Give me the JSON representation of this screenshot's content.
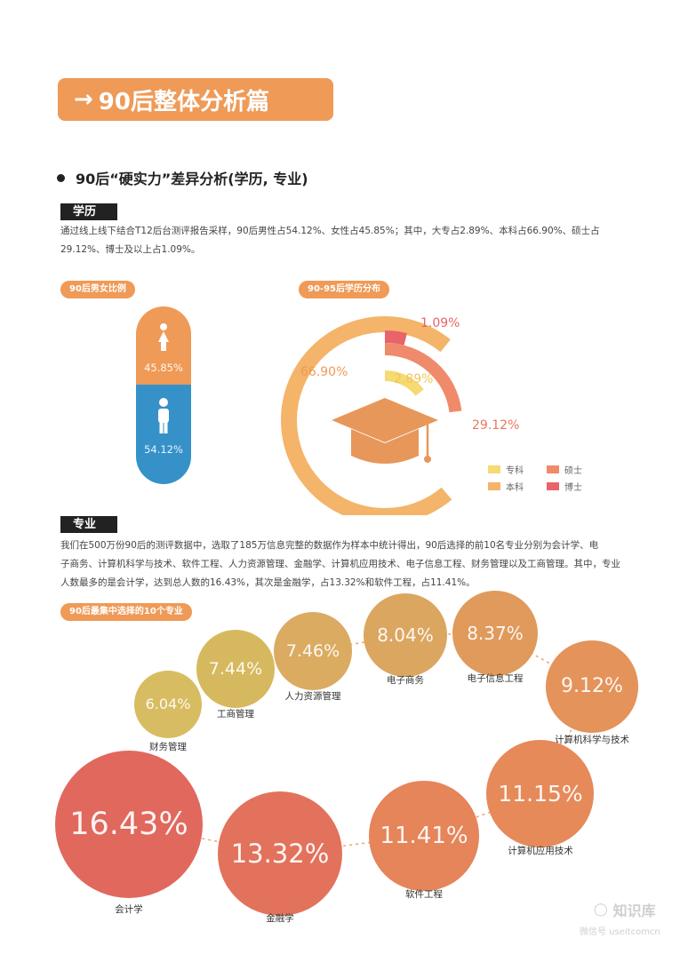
{
  "header": {
    "title": "90后整体分析篇",
    "arrow": "→"
  },
  "section": {
    "title": "90后“硬实力”差异分析(学历, 专业)"
  },
  "education": {
    "tag": "学历",
    "text_line1": "通过线上线下结合T12后台测评报告采样，90后男性占54.12%、女性占45.85%；其中，大专占2.89%、本科占66.90%、硕士占",
    "text_line2": "29.12%、博士及以上占1.09%。"
  },
  "gender_chart": {
    "pill": "90后男女比例",
    "female_label": "45.85%",
    "male_label": "54.12%",
    "colors": {
      "female": "#ef9a57",
      "male": "#3691c9"
    }
  },
  "degree_chart": {
    "pill": "90-95后学历分布"
  },
  "major": {
    "tag": "专业",
    "text_line1": "我们在500万份90后的测评数据中，选取了185万信息完整的数据作为样本中统计得出，90后选择的前10名专业分别为会计学、电",
    "text_line2": "子商务、计算机科学与技术、软件工程、人力资源管理、金融学、计算机应用技术、电子信息工程、财务管理以及工商管理。其中，专业",
    "text_line3": "人数最多的是会计学，达到总人数的16.43%，其次是金融学，占13.32%和软件工程，占11.41%。"
  },
  "major_chart": {
    "pill": "90后最集中选择的10个专业"
  },
  "chart_data": [
    {
      "type": "bar",
      "categories": [
        "女性",
        "男性"
      ],
      "values": [
        45.85,
        54.12
      ],
      "value_labels": [
        "45.85%",
        "54.12%"
      ],
      "icons": [
        "female-icon",
        "male-icon"
      ]
    },
    {
      "type": "pie",
      "categories": [
        "专科",
        "本科",
        "硕士",
        "博士"
      ],
      "values": [
        2.89,
        66.9,
        29.12,
        1.09
      ],
      "value_labels": [
        "2.89%",
        "66.90%",
        "29.12%",
        "1.09%"
      ],
      "colors": [
        "#f6da73",
        "#f4b46a",
        "#ef8a6a",
        "#e8646a"
      ],
      "legend": [
        "专科",
        "本科",
        "硕士",
        "博士"
      ],
      "legend_position": "bottom-right",
      "center_icon": "graduation-cap-icon"
    },
    {
      "type": "scatter",
      "categories": [
        "财务管理",
        "工商管理",
        "人力资源管理",
        "电子商务",
        "电子信息工程",
        "计算机科学与技术",
        "计算机应用技术",
        "软件工程",
        "金融学",
        "会计学"
      ],
      "values": [
        6.04,
        7.44,
        7.46,
        8.04,
        8.37,
        9.12,
        11.15,
        11.41,
        13.32,
        16.43
      ],
      "value_labels": [
        "6.04%",
        "7.44%",
        "7.46%",
        "8.04%",
        "8.37%",
        "9.12%",
        "11.15%",
        "11.41%",
        "13.32%",
        "16.43%"
      ],
      "colors": [
        "#d8bc62",
        "#d6b95f",
        "#dbab62",
        "#dba660",
        "#e09a5c",
        "#e4935a",
        "#e68a5a",
        "#e6845a",
        "#e2725c",
        "#e0685d"
      ]
    }
  ],
  "watermark": {
    "brand": "知识库",
    "sub": "微信号 useitcomcn"
  }
}
